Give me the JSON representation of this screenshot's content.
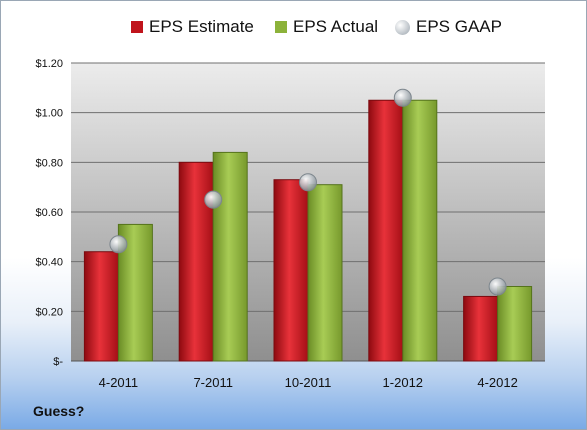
{
  "chart_data": {
    "type": "bar",
    "title": "",
    "xlabel": "",
    "ylabel": "",
    "categories": [
      "4-2011",
      "7-2011",
      "10-2011",
      "1-2012",
      "4-2012"
    ],
    "series": [
      {
        "name": "EPS Estimate",
        "kind": "bar",
        "color": "#c0141c",
        "values": [
          0.44,
          0.8,
          0.73,
          1.05,
          0.26
        ]
      },
      {
        "name": "EPS Actual",
        "kind": "bar",
        "color": "#8cb23a",
        "values": [
          0.55,
          0.84,
          0.71,
          1.05,
          0.3
        ]
      },
      {
        "name": "EPS GAAP",
        "kind": "marker",
        "color": "#b9c3cc",
        "values": [
          0.47,
          0.65,
          0.72,
          1.06,
          0.3
        ]
      }
    ],
    "ylim": [
      0,
      1.2
    ],
    "yticks": [
      0,
      0.2,
      0.4,
      0.6,
      0.8,
      1.0,
      1.2
    ],
    "ytick_labels": [
      "$-",
      "$0.20",
      "$0.40",
      "$0.60",
      "$0.80",
      "$1.00",
      "$1.20"
    ],
    "grid": true,
    "legend_position": "top"
  },
  "footer": {
    "note": "Guess?"
  }
}
